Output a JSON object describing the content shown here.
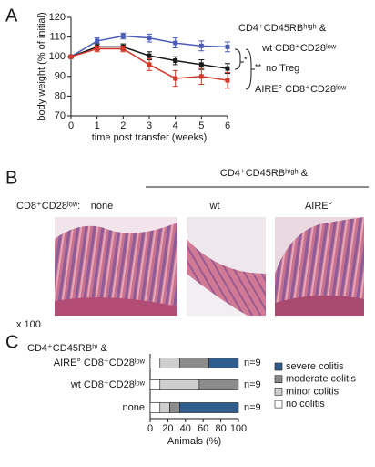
{
  "panel_labels": [
    "A",
    "B",
    "C"
  ],
  "chart_data": [
    {
      "type": "line",
      "x_label": "time post transfer (weeks)",
      "y_label": "body weight (% of initial)",
      "x": [
        0,
        1,
        2,
        3,
        4,
        5,
        6
      ],
      "xlim": [
        0,
        6
      ],
      "xticks": [
        0,
        1,
        2,
        3,
        4,
        5,
        6
      ],
      "ylim": [
        70,
        120
      ],
      "yticks": [
        70,
        80,
        90,
        100,
        110,
        120
      ],
      "series": [
        {
          "name": "wt CD8⁺CD28ˡᵒʷ",
          "color": "#4a5cb5",
          "values": [
            100,
            108,
            110.5,
            109.5,
            107,
            105.5,
            105
          ],
          "errors": [
            0.5,
            1.5,
            1.5,
            2,
            2.5,
            2.5,
            2.5
          ]
        },
        {
          "name": "no Treg",
          "color": "#1a1a1a",
          "values": [
            100,
            105,
            105,
            100.5,
            98,
            96,
            94
          ],
          "errors": [
            0.5,
            1.5,
            1.5,
            2,
            2,
            2.5,
            2.5
          ]
        },
        {
          "name": "AIRE° CD8⁺CD28ˡᵒʷ",
          "color": "#d23b2b",
          "values": [
            100,
            104,
            104,
            96,
            89,
            90,
            88
          ],
          "errors": [
            0.5,
            1.5,
            1.5,
            3,
            4,
            4,
            4
          ]
        }
      ],
      "annotations": [
        "CD4⁺CD45RBʰⁱᵍʰ &",
        "*",
        "**"
      ]
    },
    {
      "type": "stacked_barh",
      "title": "CD4⁺CD45RBʰⁱ &",
      "x_label": "Animals (%)",
      "categories": [
        "AIRE° CD8⁺CD28ˡᵒʷ",
        "wt CD8⁺CD28ˡᵒʷ",
        "none"
      ],
      "category_colors": [
        "#d23b2b",
        "#4a5cb5",
        "#1a1a1a"
      ],
      "n_labels": [
        "n=9",
        "n=9",
        "n=9"
      ],
      "xlim": [
        0,
        100
      ],
      "xticks": [
        0,
        20,
        40,
        60,
        80,
        100
      ],
      "series": [
        {
          "name": "severe colitis",
          "color": "#2f5e8e",
          "values": [
            33.3,
            0,
            66.7
          ]
        },
        {
          "name": "moderate colitis",
          "color": "#8c8c8c",
          "values": [
            33.3,
            44.4,
            11.1
          ]
        },
        {
          "name": "minor colitis",
          "color": "#cfcfcf",
          "values": [
            22.2,
            44.4,
            11.1
          ]
        },
        {
          "name": "no colitis",
          "color": "#ffffff",
          "values": [
            11.1,
            11.1,
            11.1
          ]
        }
      ]
    }
  ],
  "panel_b": {
    "header": "CD4⁺CD45RBʰⁱᵍʰ &",
    "row_label": "CD8⁺CD28ˡᵒʷ:",
    "columns": [
      {
        "label": "none",
        "color": "#1a1a1a"
      },
      {
        "label": "wt",
        "color": "#4a5cb5"
      },
      {
        "label": "AIRE°",
        "color": "#d23b2b"
      }
    ],
    "magnification": "x 100"
  }
}
